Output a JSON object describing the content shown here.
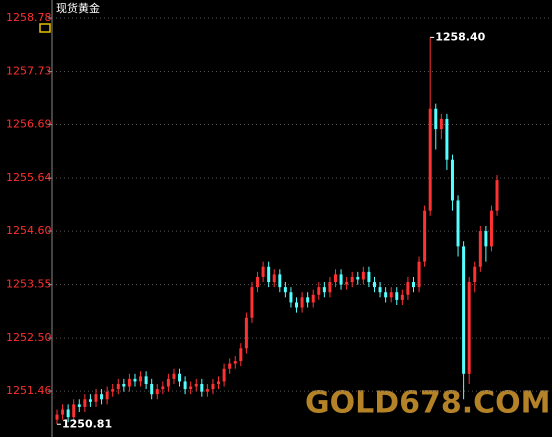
{
  "chart_data": {
    "type": "candlestick",
    "title": "现货黄金",
    "ylim": [
      1250.56,
      1258.78
    ],
    "yticks": [
      1258.78,
      1257.73,
      1256.69,
      1255.64,
      {
        "value": 1254.6,
        "label": "1254.60"
      },
      1253.55,
      {
        "value": 1252.5,
        "label": "1252.50"
      },
      1251.46
    ],
    "grid": true,
    "up_color": "#ff3232",
    "down_color": "#54ffff",
    "open": [
      1250.9,
      1251.0,
      1251.1,
      1250.95,
      1251.2,
      1251.15,
      1251.3,
      1251.25,
      1251.4,
      1251.3,
      1251.45,
      1251.5,
      1251.6,
      1251.55,
      1251.7,
      1251.65,
      1251.75,
      1251.6,
      1251.4,
      1251.5,
      1251.55,
      1251.7,
      1251.8,
      1251.65,
      1251.5,
      1251.55,
      1251.6,
      1251.45,
      1251.5,
      1251.6,
      1251.65,
      1251.9,
      1252.0,
      1252.05,
      1252.3,
      1252.9,
      1253.5,
      1253.7,
      1253.9,
      1253.6,
      1253.75,
      1253.5,
      1253.4,
      1253.2,
      1253.1,
      1253.3,
      1253.2,
      1253.35,
      1253.5,
      1253.4,
      1253.6,
      1253.75,
      1253.55,
      1253.6,
      1253.7,
      1253.65,
      1253.8,
      1253.6,
      1253.5,
      1253.4,
      1253.3,
      1253.4,
      1253.25,
      1253.35,
      1253.6,
      1253.5,
      1254.0,
      1255.0,
      1257.0,
      1256.6,
      1256.8,
      1256.0,
      1255.2,
      1254.3,
      1251.8,
      1253.6,
      1253.9,
      1254.6,
      1254.3,
      1255.0
    ],
    "high": [
      1251.1,
      1251.2,
      1251.2,
      1251.3,
      1251.3,
      1251.4,
      1251.4,
      1251.5,
      1251.5,
      1251.55,
      1251.6,
      1251.7,
      1251.7,
      1251.8,
      1251.8,
      1251.85,
      1251.85,
      1251.7,
      1251.6,
      1251.65,
      1251.8,
      1251.9,
      1251.9,
      1251.75,
      1251.65,
      1251.7,
      1251.7,
      1251.6,
      1251.7,
      1251.75,
      1252.0,
      1252.1,
      1252.15,
      1252.4,
      1253.0,
      1253.6,
      1253.8,
      1254.0,
      1254.0,
      1253.85,
      1253.85,
      1253.6,
      1253.5,
      1253.3,
      1253.4,
      1253.4,
      1253.45,
      1253.6,
      1253.6,
      1253.7,
      1253.85,
      1253.85,
      1253.7,
      1253.8,
      1253.8,
      1253.9,
      1253.9,
      1253.7,
      1253.6,
      1253.5,
      1253.5,
      1253.5,
      1253.45,
      1253.7,
      1253.7,
      1254.1,
      1255.1,
      1258.4,
      1257.1,
      1256.9,
      1256.9,
      1256.1,
      1255.3,
      1254.4,
      1253.7,
      1254.0,
      1254.7,
      1254.7,
      1255.1,
      1255.7
    ],
    "low": [
      1250.81,
      1250.9,
      1250.85,
      1250.85,
      1251.05,
      1251.05,
      1251.15,
      1251.15,
      1251.2,
      1251.2,
      1251.35,
      1251.4,
      1251.45,
      1251.45,
      1251.55,
      1251.55,
      1251.5,
      1251.3,
      1251.3,
      1251.4,
      1251.45,
      1251.6,
      1251.55,
      1251.4,
      1251.4,
      1251.45,
      1251.35,
      1251.35,
      1251.4,
      1251.5,
      1251.55,
      1251.8,
      1251.9,
      1251.95,
      1252.2,
      1252.8,
      1253.4,
      1253.6,
      1253.5,
      1253.5,
      1253.4,
      1253.3,
      1253.1,
      1253.0,
      1253.0,
      1253.1,
      1253.1,
      1253.25,
      1253.3,
      1253.3,
      1253.5,
      1253.45,
      1253.45,
      1253.5,
      1253.55,
      1253.55,
      1253.5,
      1253.4,
      1253.3,
      1253.2,
      1253.2,
      1253.15,
      1253.15,
      1253.25,
      1253.4,
      1253.4,
      1253.9,
      1254.9,
      1256.2,
      1256.4,
      1255.8,
      1255.0,
      1254.1,
      1251.3,
      1251.6,
      1253.4,
      1253.8,
      1254.0,
      1254.2,
      1254.9
    ],
    "close": [
      1251.0,
      1251.1,
      1250.95,
      1251.2,
      1251.15,
      1251.3,
      1251.25,
      1251.4,
      1251.3,
      1251.45,
      1251.5,
      1251.6,
      1251.55,
      1251.7,
      1251.65,
      1251.75,
      1251.6,
      1251.4,
      1251.5,
      1251.55,
      1251.7,
      1251.8,
      1251.65,
      1251.5,
      1251.55,
      1251.6,
      1251.45,
      1251.5,
      1251.6,
      1251.65,
      1251.9,
      1252.0,
      1252.05,
      1252.3,
      1252.9,
      1253.5,
      1253.7,
      1253.9,
      1253.6,
      1253.75,
      1253.5,
      1253.4,
      1253.2,
      1253.1,
      1253.3,
      1253.2,
      1253.35,
      1253.5,
      1253.4,
      1253.6,
      1253.75,
      1253.55,
      1253.6,
      1253.7,
      1253.65,
      1253.8,
      1253.6,
      1253.5,
      1253.4,
      1253.3,
      1253.4,
      1253.25,
      1253.35,
      1253.6,
      1253.5,
      1254.0,
      1255.0,
      1257.0,
      1256.6,
      1256.8,
      1256.0,
      1255.2,
      1254.3,
      1251.8,
      1253.6,
      1253.9,
      1254.6,
      1254.3,
      1255.0,
      1255.6
    ],
    "annotations": [
      {
        "value": 1258.4,
        "label": "1258.40"
      },
      {
        "value": 1250.81,
        "label": "1250.81"
      }
    ],
    "watermark": "GOLD678.COM"
  }
}
